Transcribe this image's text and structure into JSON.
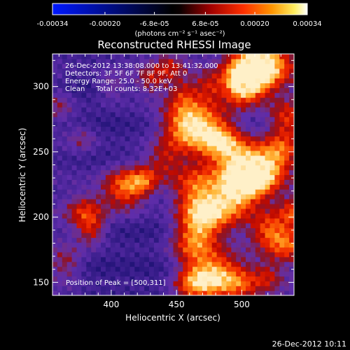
{
  "chart_data": {
    "type": "heatmap",
    "title": "Reconstructed RHESSI Image",
    "xlabel": "Heliocentric X (arcsec)",
    "ylabel": "Heliocentric Y (arcsec)",
    "xlim": [
      355,
      540
    ],
    "ylim": [
      140,
      325
    ],
    "x_ticks": [
      400,
      450,
      500
    ],
    "y_ticks": [
      150,
      200,
      250,
      300
    ],
    "colorbar": {
      "min": -0.00034,
      "max": 0.00034,
      "ticks_below": [
        "-0.00034",
        "-0.00020",
        "0.00020",
        "0.00034"
      ],
      "ticks_above": [
        "-6.8e-05",
        "6.8e-05"
      ],
      "tick_values_below": [
        -0.00034,
        -0.0002,
        0.0002,
        0.00034
      ],
      "tick_values_above": [
        -6.8e-05,
        6.8e-05
      ],
      "unit_label": "(photons cm⁻² s⁻¹ asec⁻²)"
    },
    "annotations": [
      "26-Dec-2012 13:38:08.000 to 13:41:32.000",
      "Detectors: 3F 5F 6F 7F 8F 9F, Att 0",
      "Energy Range: 25.0 - 50.0 keV",
      "Clean     Total counts: 8.32E+03"
    ],
    "peak_label": "Position of Peak = [500,311]",
    "peak_position": [
      500,
      311
    ],
    "colors": {
      "negative": "#0000ff",
      "zero": "#000000",
      "positive": [
        "#a00000",
        "#ff3000",
        "#ff9000",
        "#ffff80",
        "#ffffff"
      ],
      "background_map": "#5a2aa0"
    }
  },
  "footer": {
    "timestamp": "26-Dec-2012 10:11"
  }
}
